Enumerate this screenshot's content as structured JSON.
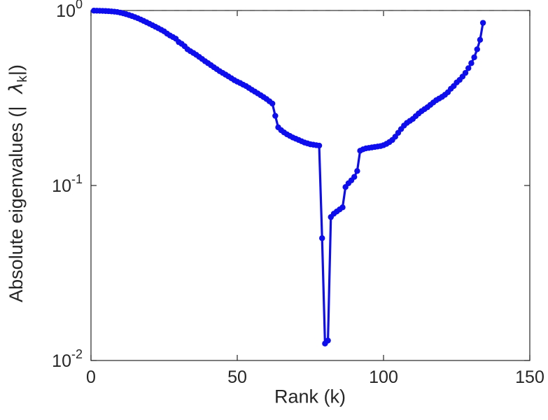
{
  "chart_data": {
    "type": "line",
    "title": "",
    "xlabel": "Rank (k)",
    "ylabel_parts": {
      "prefix": "Absolute eigenvalues (|",
      "lambda": "λ",
      "subscript": "k",
      "suffix": "|)"
    },
    "y_scale": "log",
    "xlim": [
      0,
      150
    ],
    "ylim": [
      0.01,
      1
    ],
    "x_ticks": [
      {
        "value": 0,
        "label": "0"
      },
      {
        "value": 50,
        "label": "50"
      },
      {
        "value": 100,
        "label": "100"
      },
      {
        "value": 150,
        "label": "150"
      }
    ],
    "y_ticks": [
      {
        "value": 1,
        "base": "10",
        "exp": "0"
      },
      {
        "value": 0.1,
        "base": "10",
        "exp": "-1"
      },
      {
        "value": 0.01,
        "base": "10",
        "exp": "-2"
      }
    ],
    "grid": false,
    "legend": "none",
    "reference_line": {
      "y": 1.0,
      "style": "dashed",
      "color": "#7a7a7a"
    },
    "style": {
      "line_color": "#0d0dee",
      "marker": "circle",
      "marker_radius": 4.2,
      "line_width": 3.2,
      "axis_color": "#262626",
      "background": "#ffffff"
    },
    "series": [
      {
        "name": "absolute-eigenvalues",
        "x": [
          1,
          2,
          3,
          4,
          5,
          6,
          7,
          8,
          9,
          10,
          11,
          12,
          13,
          14,
          15,
          16,
          17,
          18,
          19,
          20,
          21,
          22,
          23,
          24,
          25,
          26,
          27,
          28,
          29,
          30,
          31,
          32,
          33,
          34,
          35,
          36,
          37,
          38,
          39,
          40,
          41,
          42,
          43,
          44,
          45,
          46,
          47,
          48,
          49,
          50,
          51,
          52,
          53,
          54,
          55,
          56,
          57,
          58,
          59,
          60,
          61,
          62,
          63,
          64,
          65,
          66,
          67,
          68,
          69,
          70,
          71,
          72,
          73,
          74,
          75,
          76,
          77,
          78,
          79,
          80,
          81,
          82,
          83,
          84,
          85,
          86,
          87,
          88,
          89,
          90,
          91,
          92,
          93,
          94,
          95,
          96,
          97,
          98,
          99,
          100,
          101,
          102,
          103,
          104,
          105,
          106,
          107,
          108,
          109,
          110,
          111,
          112,
          113,
          114,
          115,
          116,
          117,
          118,
          119,
          120,
          121,
          122,
          123,
          124,
          125,
          126,
          127,
          128,
          129,
          130,
          131,
          132,
          133,
          134
        ],
        "y": [
          0.998,
          0.997,
          0.996,
          0.995,
          0.993,
          0.991,
          0.988,
          0.985,
          0.98,
          0.972,
          0.963,
          0.953,
          0.942,
          0.93,
          0.917,
          0.903,
          0.888,
          0.872,
          0.856,
          0.84,
          0.824,
          0.808,
          0.792,
          0.776,
          0.76,
          0.738,
          0.72,
          0.705,
          0.69,
          0.66,
          0.645,
          0.625,
          0.6,
          0.585,
          0.572,
          0.558,
          0.543,
          0.528,
          0.513,
          0.5,
          0.487,
          0.474,
          0.462,
          0.45,
          0.44,
          0.43,
          0.42,
          0.41,
          0.4,
          0.392,
          0.385,
          0.377,
          0.37,
          0.361,
          0.352,
          0.344,
          0.336,
          0.328,
          0.32,
          0.312,
          0.303,
          0.294,
          0.25,
          0.215,
          0.207,
          0.201,
          0.196,
          0.192,
          0.188,
          0.185,
          0.182,
          0.179,
          0.176,
          0.174,
          0.172,
          0.171,
          0.17,
          0.169,
          0.05,
          0.0125,
          0.013,
          0.066,
          0.069,
          0.071,
          0.073,
          0.075,
          0.098,
          0.103,
          0.107,
          0.112,
          0.121,
          0.158,
          0.161,
          0.163,
          0.164,
          0.165,
          0.166,
          0.167,
          0.168,
          0.17,
          0.173,
          0.177,
          0.182,
          0.19,
          0.2,
          0.21,
          0.22,
          0.228,
          0.234,
          0.24,
          0.249,
          0.258,
          0.266,
          0.273,
          0.28,
          0.289,
          0.298,
          0.307,
          0.314,
          0.321,
          0.33,
          0.341,
          0.357,
          0.37,
          0.388,
          0.401,
          0.419,
          0.44,
          0.468,
          0.5,
          0.54,
          0.6,
          0.68,
          0.85
        ]
      }
    ]
  }
}
